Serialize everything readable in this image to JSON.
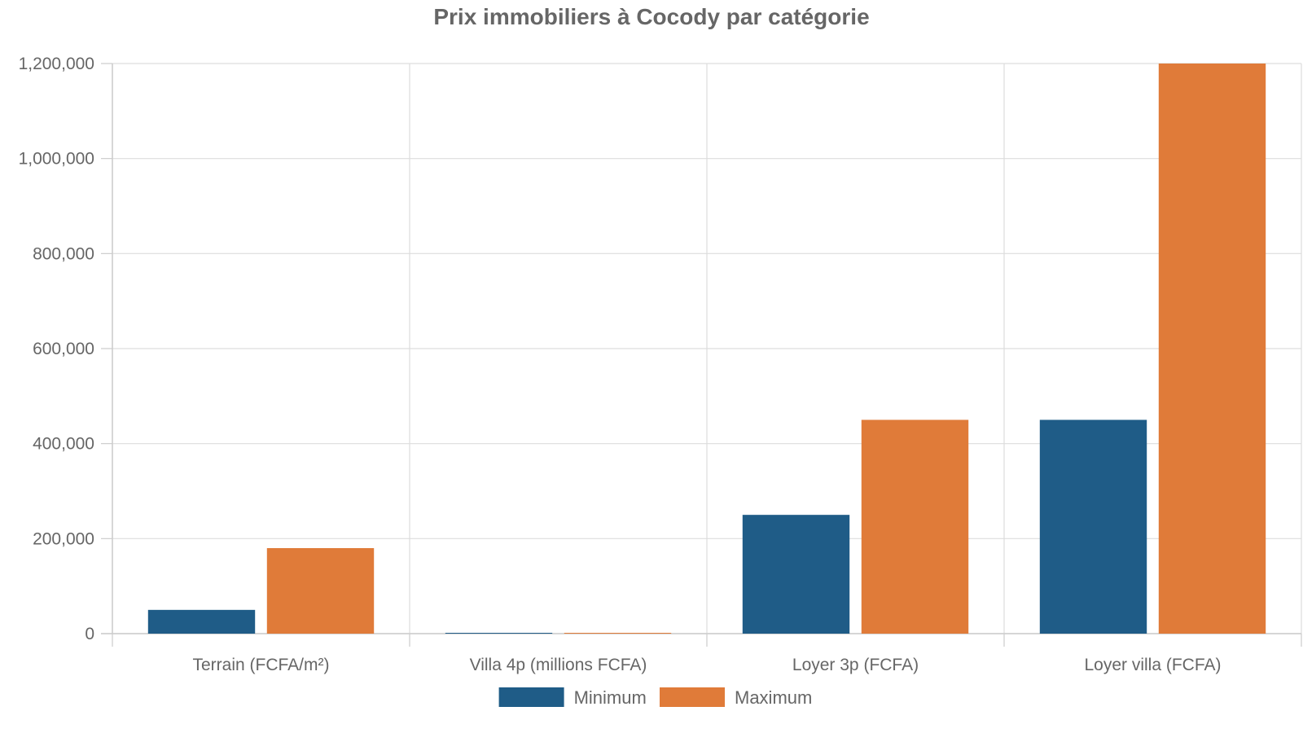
{
  "chart_data": {
    "type": "bar",
    "title": "Prix immobiliers à Cocody par catégorie",
    "categories": [
      "Terrain (FCFA/m²)",
      "Villa 4p (millions FCFA)",
      "Loyer 3p (FCFA)",
      "Loyer villa (FCFA)"
    ],
    "series": [
      {
        "name": "Minimum",
        "color": "#1f5c87",
        "values": [
          50000,
          800,
          250000,
          450000
        ]
      },
      {
        "name": "Maximum",
        "color": "#e07b39",
        "values": [
          180000,
          1200,
          450000,
          1200000
        ]
      }
    ],
    "ylim": [
      0,
      1200000
    ],
    "yticks": [
      0,
      200000,
      400000,
      600000,
      800000,
      1000000,
      1200000
    ],
    "ytick_labels": [
      "0",
      "200,000",
      "400,000",
      "600,000",
      "800,000",
      "1,000,000",
      "1,200,000"
    ],
    "grid": true,
    "legend_position": "bottom-center"
  }
}
